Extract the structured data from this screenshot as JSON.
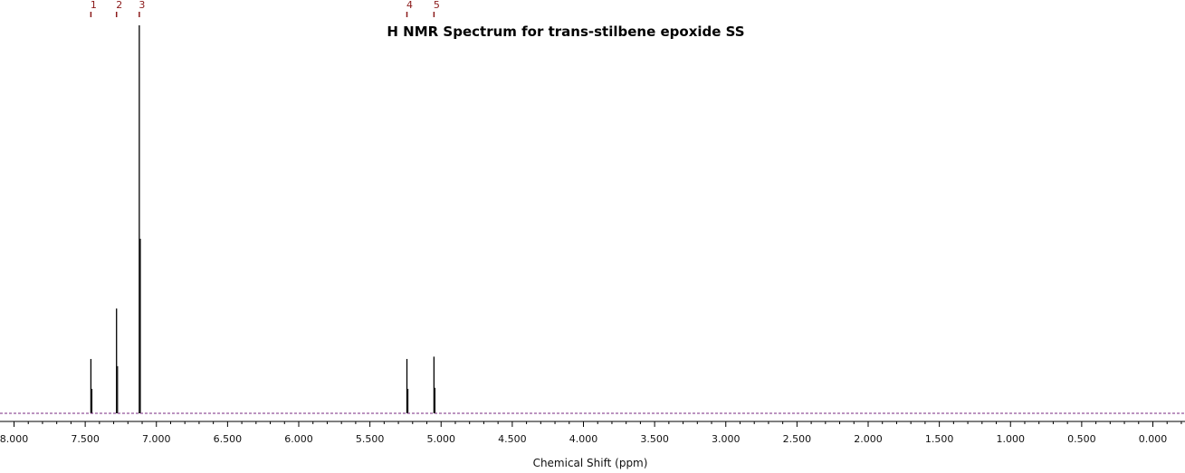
{
  "chart_data": {
    "type": "line",
    "title": "H NMR Spectrum for trans-stilbene epoxide SS",
    "xlabel": "Chemical Shift (ppm)",
    "ylabel": "",
    "xlim": [
      8.05,
      -0.23
    ],
    "x_reversed": true,
    "ylim": [
      0,
      1
    ],
    "grid": false,
    "legend": "none",
    "x_ticks": [
      {
        "value": 8.0,
        "label": "8.000"
      },
      {
        "value": 7.5,
        "label": "7.500"
      },
      {
        "value": 7.0,
        "label": "7.000"
      },
      {
        "value": 6.5,
        "label": "6.500"
      },
      {
        "value": 6.0,
        "label": "6.000"
      },
      {
        "value": 5.5,
        "label": "5.500"
      },
      {
        "value": 5.0,
        "label": "5.000"
      },
      {
        "value": 4.5,
        "label": "4.500"
      },
      {
        "value": 4.0,
        "label": "4.000"
      },
      {
        "value": 3.5,
        "label": "3.500"
      },
      {
        "value": 3.0,
        "label": "3.000"
      },
      {
        "value": 2.5,
        "label": "2.500"
      },
      {
        "value": 2.0,
        "label": "2.000"
      },
      {
        "value": 1.5,
        "label": "1.500"
      },
      {
        "value": 1.0,
        "label": "1.000"
      },
      {
        "value": 0.5,
        "label": "0.500"
      },
      {
        "value": 0.0,
        "label": "0.000"
      }
    ],
    "peaks": [
      {
        "label": "1",
        "shift": 7.46,
        "intensity": 0.14
      },
      {
        "label": "2",
        "shift": 7.28,
        "intensity": 0.27
      },
      {
        "label": "3",
        "shift": 7.12,
        "intensity": 1.0
      },
      {
        "label": "4",
        "shift": 5.24,
        "intensity": 0.14
      },
      {
        "label": "5",
        "shift": 5.05,
        "intensity": 0.146
      }
    ],
    "colors": {
      "spectrum": "#000000",
      "baseline": "#7a2a80",
      "peak_marker": "#8b1a1a",
      "axis": "#000000"
    }
  }
}
